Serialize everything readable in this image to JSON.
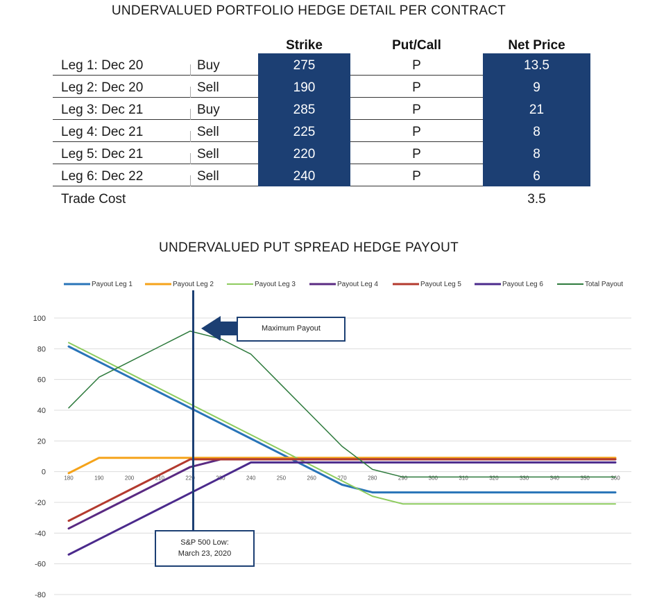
{
  "table": {
    "title": "UNDERVALUED PORTFOLIO HEDGE DETAIL PER CONTRACT",
    "headers": {
      "strike": "Strike",
      "put_call": "Put/Call",
      "net_price": "Net Price"
    },
    "rows": [
      {
        "leg": "Leg 1: Dec 20",
        "side": "Buy",
        "strike": "275",
        "put_call": "P",
        "net_price": "13.5"
      },
      {
        "leg": "Leg 2: Dec 20",
        "side": "Sell",
        "strike": "190",
        "put_call": "P",
        "net_price": "9"
      },
      {
        "leg": "Leg 3: Dec 21",
        "side": "Buy",
        "strike": "285",
        "put_call": "P",
        "net_price": "21"
      },
      {
        "leg": "Leg 4: Dec 21",
        "side": "Sell",
        "strike": "225",
        "put_call": "P",
        "net_price": "8"
      },
      {
        "leg": "Leg 5: Dec 21",
        "side": "Sell",
        "strike": "220",
        "put_call": "P",
        "net_price": "8"
      },
      {
        "leg": "Leg 6: Dec 22",
        "side": "Sell",
        "strike": "240",
        "put_call": "P",
        "net_price": "6"
      }
    ],
    "cost": {
      "label": "Trade Cost",
      "value": "3.5"
    }
  },
  "chart_data": {
    "type": "line",
    "title": "UNDERVALUED PUT SPREAD HEDGE PAYOUT",
    "xlabel": "",
    "ylabel": "",
    "x": [
      180,
      190,
      200,
      210,
      220,
      230,
      240,
      250,
      260,
      270,
      280,
      290,
      300,
      310,
      320,
      330,
      340,
      350,
      360
    ],
    "xlim": [
      180,
      360
    ],
    "ylim": [
      -80,
      100
    ],
    "yticks": [
      100,
      80,
      60,
      40,
      20,
      0,
      -20,
      -40,
      -60,
      -80
    ],
    "grid": "horizontal",
    "legend_position": "top",
    "series": [
      {
        "name": "Payout Leg 1",
        "color": "#2874b8",
        "width": 3,
        "values": [
          81.5,
          71.5,
          61.5,
          51.5,
          41.5,
          31.5,
          21.5,
          11.5,
          1.5,
          -8.5,
          -13.5,
          -13.5,
          -13.5,
          -13.5,
          -13.5,
          -13.5,
          -13.5,
          -13.5,
          -13.5
        ]
      },
      {
        "name": "Payout Leg 2",
        "color": "#f5a31a",
        "width": 3,
        "values": [
          -1,
          9,
          9,
          9,
          9,
          9,
          9,
          9,
          9,
          9,
          9,
          9,
          9,
          9,
          9,
          9,
          9,
          9,
          9
        ]
      },
      {
        "name": "Payout Leg 3",
        "color": "#8dcb5e",
        "width": 2,
        "values": [
          84,
          74,
          64,
          54,
          44,
          34,
          24,
          14,
          4,
          -6,
          -16,
          -21,
          -21,
          -21,
          -21,
          -21,
          -21,
          -21,
          -21
        ]
      },
      {
        "name": "Payout Leg 4",
        "color": "#5a2a82",
        "width": 3,
        "values": [
          -37,
          -27,
          -17,
          -7,
          3,
          8,
          8,
          8,
          8,
          8,
          8,
          8,
          8,
          8,
          8,
          8,
          8,
          8,
          8
        ]
      },
      {
        "name": "Payout Leg 5",
        "color": "#b33a2e",
        "width": 3,
        "values": [
          -32,
          -22,
          -12,
          -2,
          8,
          8,
          8,
          8,
          8,
          8,
          8,
          8,
          8,
          8,
          8,
          8,
          8,
          8,
          8
        ]
      },
      {
        "name": "Payout Leg 6",
        "color": "#4b2a8c",
        "width": 3,
        "values": [
          -54,
          -44,
          -34,
          -24,
          -14,
          -4,
          6,
          6,
          6,
          6,
          6,
          6,
          6,
          6,
          6,
          6,
          6,
          6,
          6
        ]
      },
      {
        "name": "Total Payout",
        "color": "#2d7a3c",
        "width": 1.5,
        "values": [
          41.5,
          61.5,
          71.5,
          81.5,
          91.5,
          86.5,
          76.5,
          56.5,
          36.5,
          16.5,
          1.5,
          -3.5,
          -3.5,
          -3.5,
          -3.5,
          -3.5,
          -3.5,
          -3.5,
          -3.5
        ]
      }
    ],
    "annotations": {
      "max_payout": "Maximum Payout",
      "low_line1": "S&P 500 Low:",
      "low_line2": "March 23, 2020",
      "low_x": 221
    }
  }
}
